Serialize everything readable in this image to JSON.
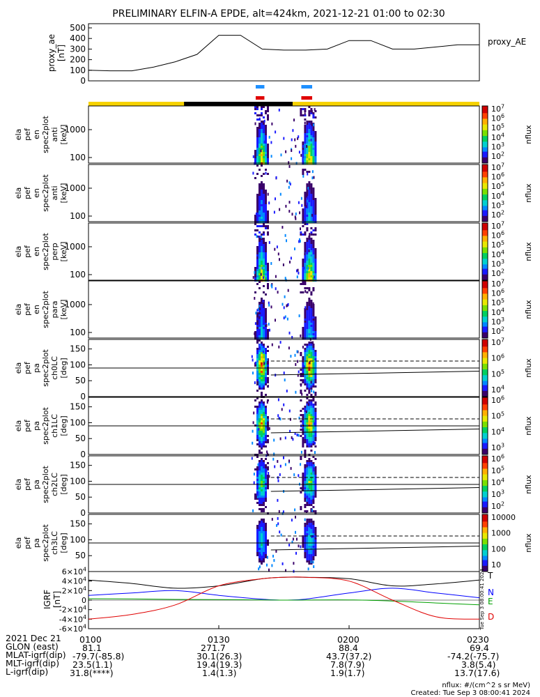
{
  "title": "PRELIMINARY ELFIN-A EPDE, alt=424km, 2021-12-21 01:00 to 02:30",
  "colors": {
    "proxy_line": "#000000",
    "bar_blue": "#1e90ff",
    "bar_red": "#e00000",
    "status_yellow": "#f6d200",
    "status_black": "#000000",
    "igrf_T": "#000000",
    "igrf_N": "#0000ff",
    "igrf_E": "#00a000",
    "igrf_D": "#e00000"
  },
  "chart_data": [
    {
      "type": "line",
      "name": "proxy_ae",
      "ylabel": "proxy_ae\n[nT]",
      "right_label": "proxy_AE",
      "ylim": [
        0,
        500
      ],
      "yticks": [
        "0",
        "100",
        "200",
        "300",
        "400",
        "500"
      ],
      "x_minutes": [
        0,
        5,
        10,
        15,
        20,
        25,
        30,
        35,
        40,
        45,
        50,
        55,
        60,
        65,
        70,
        75,
        80,
        85,
        90
      ],
      "values": [
        100,
        95,
        95,
        130,
        180,
        250,
        430,
        430,
        300,
        290,
        290,
        300,
        380,
        380,
        300,
        300,
        320,
        340,
        340
      ]
    },
    {
      "type": "heatmap",
      "name": "science_bars",
      "blue_intervals_min": [
        [
          38.5,
          40.5
        ],
        [
          49,
          51.5
        ]
      ],
      "red_intervals_min": [
        [
          38.5,
          40.5
        ],
        [
          49,
          51.5
        ]
      ],
      "black_interval_min": [
        22,
        47
      ]
    },
    {
      "type": "heatmap",
      "panels": [
        {
          "ylabel": [
            "ela",
            "pef",
            "en",
            "spec2plot",
            "anti",
            "[keV]"
          ],
          "yticks": [
            "100",
            "1000"
          ],
          "ylog": true,
          "cbar_ticks": [
            "10^7",
            "10^6",
            "10^5",
            "10^4",
            "10^3",
            "10^2"
          ],
          "cbar_label": "nflux",
          "intensity": 1.0
        },
        {
          "ylabel": [
            "ela",
            "pef",
            "en",
            "spec2plot",
            "anti",
            "[keV]"
          ],
          "yticks": [
            "100",
            "1000"
          ],
          "ylog": true,
          "cbar_ticks": [
            "10^7",
            "10^6",
            "10^5",
            "10^4",
            "10^3",
            "10^2"
          ],
          "cbar_label": "nflux",
          "intensity": 0.45
        },
        {
          "ylabel": [
            "ela",
            "pef",
            "en",
            "spec2plot",
            "perp",
            "[keV]"
          ],
          "yticks": [
            "100",
            "1000"
          ],
          "ylog": true,
          "cbar_ticks": [
            "10^7",
            "10^6",
            "10^5",
            "10^4",
            "10^3",
            "10^2"
          ],
          "cbar_label": "nflux",
          "intensity": 1.0
        },
        {
          "ylabel": [
            "ela",
            "pef",
            "en",
            "spec2plot",
            "para",
            "[keV]"
          ],
          "yticks": [
            "100",
            "1000"
          ],
          "ylog": true,
          "cbar_ticks": [
            "10^7",
            "10^6",
            "10^5",
            "10^4",
            "10^3",
            "10^2"
          ],
          "cbar_label": "nflux",
          "intensity": 0.45
        },
        {
          "ylabel": [
            "ela",
            "pef",
            "pa",
            "spec2plot",
            "ch0LC",
            "[deg]"
          ],
          "yticks": [
            "0",
            "50",
            "100",
            "150"
          ],
          "ylim": [
            0,
            180
          ],
          "cbar_ticks": [
            "10^7",
            "10^6",
            "10^5",
            "10^4"
          ],
          "cbar_label": "nflux",
          "intensity": 1.0
        },
        {
          "ylabel": [
            "ela",
            "pef",
            "pa",
            "spec2plot",
            "ch1LC",
            "[deg]"
          ],
          "yticks": [
            "0",
            "50",
            "100",
            "150"
          ],
          "ylim": [
            0,
            180
          ],
          "cbar_ticks": [
            "10^6",
            "10^5",
            "10^4",
            "10^3"
          ],
          "cbar_label": "nflux",
          "intensity": 0.85
        },
        {
          "ylabel": [
            "ela",
            "pef",
            "pa",
            "spec2plot",
            "ch2LC",
            "[deg]"
          ],
          "yticks": [
            "0",
            "50",
            "100",
            "150"
          ],
          "ylim": [
            0,
            180
          ],
          "cbar_ticks": [
            "10^6",
            "10^5",
            "10^4",
            "10^3",
            "10^2"
          ],
          "cbar_label": "nflux",
          "intensity": 0.65
        },
        {
          "ylabel": [
            "ela",
            "pef",
            "pa",
            "spec2plot",
            "ch3LC",
            "[deg]"
          ],
          "yticks": [
            "50",
            "100",
            "150"
          ],
          "ylim": [
            0,
            180
          ],
          "cbar_ticks": [
            "10000",
            "1000",
            "100",
            "10"
          ],
          "cbar_label": "nflux",
          "intensity": 0.45
        }
      ]
    },
    {
      "type": "line",
      "name": "IGRF",
      "ylabel": "IGRF\n[nT]",
      "ylim": [
        -60000,
        60000
      ],
      "yticks": [
        "-6×10^4",
        "-4×10^4",
        "-2×10^4",
        "0",
        "2×10^4",
        "4×10^4",
        "6×10^4"
      ],
      "x_minutes": [
        0,
        10,
        20,
        30,
        40,
        45,
        50,
        60,
        70,
        80,
        90
      ],
      "series": [
        {
          "name": "T",
          "values": [
            42000,
            35000,
            25000,
            30000,
            45000,
            48000,
            48000,
            45000,
            30000,
            34000,
            42000
          ]
        },
        {
          "name": "N",
          "values": [
            10000,
            15000,
            20000,
            10000,
            2000,
            0,
            2000,
            15000,
            25000,
            15000,
            5000
          ]
        },
        {
          "name": "E",
          "values": [
            3000,
            2500,
            1500,
            1000,
            500,
            0,
            200,
            500,
            -2000,
            -6000,
            -10000
          ]
        },
        {
          "name": "D",
          "values": [
            -40000,
            -30000,
            -10000,
            30000,
            45000,
            48000,
            48000,
            40000,
            0,
            -35000,
            -40000
          ]
        }
      ]
    }
  ],
  "xaxis": {
    "ticks": [
      "0100",
      "0130",
      "0200",
      "0230"
    ]
  },
  "footer": {
    "rows": [
      {
        "label": "2021 Dec 21",
        "values": [
          "0100",
          "0130",
          "0200",
          "0230"
        ]
      },
      {
        "label": "GLON (east)",
        "values": [
          "81.1",
          "271.7",
          "88.4",
          "69.4"
        ]
      },
      {
        "label": "MLAT-igrf(dip)",
        "values": [
          "-79.7(-85.8)",
          "30.1(26.3)",
          "43.7(37.2)",
          "-74.2(-75.7)"
        ]
      },
      {
        "label": "MLT-igrf(dip)",
        "values": [
          "23.5(1.1)",
          "19.4(19.3)",
          "7.8(7.9)",
          "3.8(5.4)"
        ]
      },
      {
        "label": "L-igrf(dip)",
        "values": [
          "31.8(****)",
          "1.4(1.3)",
          "1.9(1.7)",
          "13.7(17.6)"
        ]
      }
    ],
    "nflux_note": "nflux: #/(cm^2 s sr MeV)",
    "created": "Created: Tue Sep  3 08:00:41 2024",
    "side_stamp": "Tue Sep  3 08:00:41 2024"
  }
}
